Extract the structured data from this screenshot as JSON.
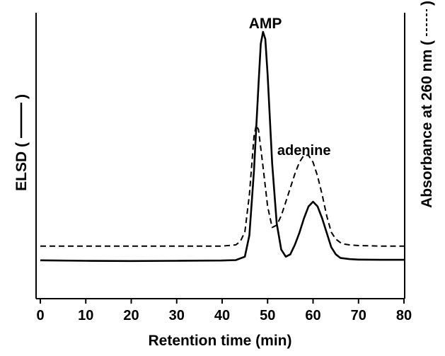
{
  "chart_data": {
    "type": "line",
    "title": "",
    "xlabel": "Retention time (min)",
    "ylabel_left": "ELSD (",
    "ylabel_left_close": ")",
    "ylabel_right": "Absorbance at 260 nm (",
    "ylabel_right_close": ")",
    "xlim": [
      0,
      80
    ],
    "xticks": [
      0,
      10,
      20,
      30,
      40,
      50,
      60,
      70,
      80
    ],
    "xtick_labels": [
      "0",
      "10",
      "20",
      "30",
      "40",
      "50",
      "60",
      "70",
      "80"
    ],
    "yticks_shown": false,
    "grid": false,
    "annotations": [
      {
        "text": "AMP",
        "x": 49.5,
        "y": 0.97
      },
      {
        "text": "adenine",
        "x": 58,
        "y": 0.52
      }
    ],
    "series": [
      {
        "axis": "left",
        "style": "solid",
        "x": [
          0,
          10,
          20,
          30,
          40,
          43,
          45,
          46,
          47,
          48,
          48.5,
          49,
          49.5,
          50,
          51,
          52,
          53,
          54,
          55,
          56,
          57,
          58,
          59,
          60,
          61,
          62,
          63,
          64,
          65,
          66,
          68,
          70,
          75,
          80
        ],
        "y": [
          0.045,
          0.043,
          0.042,
          0.043,
          0.044,
          0.046,
          0.06,
          0.15,
          0.42,
          0.78,
          0.95,
          1.0,
          0.97,
          0.82,
          0.45,
          0.2,
          0.09,
          0.06,
          0.07,
          0.11,
          0.16,
          0.22,
          0.27,
          0.29,
          0.27,
          0.22,
          0.16,
          0.1,
          0.07,
          0.055,
          0.05,
          0.048,
          0.047,
          0.047
        ]
      },
      {
        "axis": "right",
        "style": "dashed",
        "x": [
          0,
          10,
          20,
          30,
          40,
          43,
          44,
          45,
          46,
          47,
          47.5,
          48,
          49,
          50,
          51,
          52,
          53,
          54,
          55,
          56,
          57,
          58,
          59,
          60,
          61,
          62,
          63,
          64,
          65,
          66,
          67,
          68,
          70,
          75,
          80
        ],
        "y": [
          0.08,
          0.08,
          0.08,
          0.08,
          0.08,
          0.085,
          0.1,
          0.14,
          0.3,
          0.55,
          0.6,
          0.58,
          0.42,
          0.25,
          0.16,
          0.17,
          0.21,
          0.27,
          0.33,
          0.39,
          0.44,
          0.47,
          0.47,
          0.44,
          0.38,
          0.3,
          0.21,
          0.14,
          0.11,
          0.095,
          0.088,
          0.085,
          0.082,
          0.08,
          0.08
        ]
      }
    ]
  }
}
